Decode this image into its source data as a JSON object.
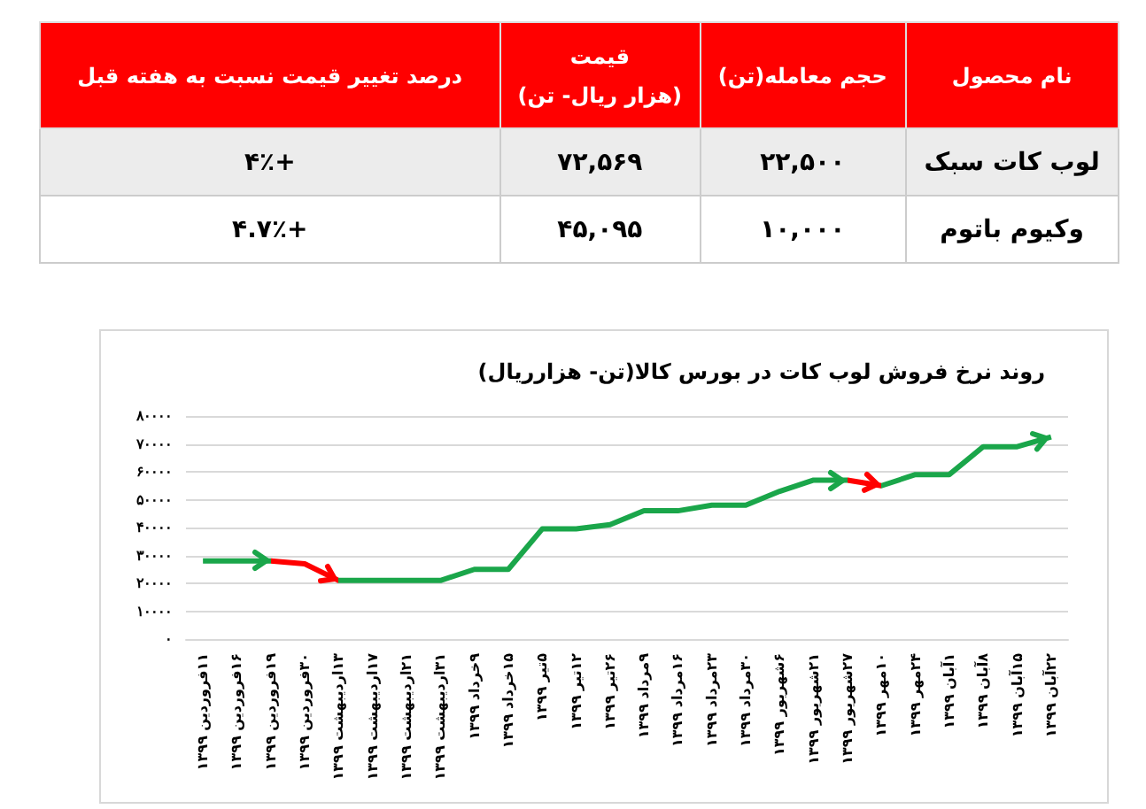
{
  "chart_data": [
    {
      "type": "other",
      "categories": [
        "نام محصول",
        "حجم معامله(تن)",
        "قیمت\n(هزار ریال- تن)",
        "درصد تغییر قیمت نسبت به هفته قبل"
      ],
      "cell_labels": [
        [
          "لوب کات سبک",
          "۲۲,۵۰۰",
          "۷۲,۵۶۹",
          "+۴٪"
        ],
        [
          "وکیوم باتوم",
          "۱۰,۰۰۰",
          "۴۵,۰۹۵",
          "+۴.۷٪"
        ]
      ]
    },
    {
      "type": "line",
      "title": "روند نرخ فروش لوب کات در بورس کالا(تن- هزارریال)",
      "categories": [
        "۱۱فروردین ۱۳۹۹",
        "۱۶فروردین ۱۳۹۹",
        "۱۹فروردین ۱۳۹۹",
        "۳۰فروردین ۱۳۹۹",
        "۱۳اردیبهشت ۱۳۹۹",
        "۱۷اردیبهشت ۱۳۹۹",
        "۲۱اردیبهشت ۱۳۹۹",
        "۳۱اردیبهشت ۱۳۹۹",
        "۹خرداد ۱۳۹۹",
        "۱۵خرداد ۱۳۹۹",
        "۵تیر ۱۳۹۹",
        "۱۲تیر ۱۳۹۹",
        "۲۶تیر ۱۳۹۹",
        "۹مرداد ۱۳۹۹",
        "۱۶مرداد ۱۳۹۹",
        "۲۳مرداد ۱۳۹۹",
        "۳۰مرداد ۱۳۹۹",
        "۶شهریور ۱۳۹۹",
        "۲۱شهریور ۱۳۹۹",
        "۲۷شهریور ۱۳۹۹",
        "۱۰مهر ۱۳۹۹",
        "۲۴مهر ۱۳۹۹",
        "۱آبان ۱۳۹۹",
        "۸آبان ۱۳۹۹",
        "۱۵آبان ۱۳۹۹",
        "۲۲آبان ۱۳۹۹"
      ],
      "values": [
        28000,
        28000,
        28000,
        27000,
        21000,
        21000,
        21000,
        21000,
        25000,
        25000,
        39500,
        39500,
        41000,
        46000,
        46000,
        48000,
        48000,
        53000,
        57000,
        57000,
        55000,
        59000,
        59000,
        69000,
        69000,
        72500
      ],
      "colors": [
        "#1aa64a",
        "#1aa64a",
        "#1aa64a",
        "#ff0000",
        "#ff0000",
        "#1aa64a",
        "#1aa64a",
        "#1aa64a",
        "#1aa64a",
        "#1aa64a",
        "#1aa64a",
        "#1aa64a",
        "#1aa64a",
        "#1aa64a",
        "#1aa64a",
        "#1aa64a",
        "#1aa64a",
        "#1aa64a",
        "#1aa64a",
        "#1aa64a",
        "#ff0000",
        "#1aa64a",
        "#1aa64a",
        "#1aa64a",
        "#1aa64a",
        "#1aa64a"
      ],
      "ylim": [
        0,
        80000
      ],
      "yticks": [
        {
          "value": 0,
          "label": "۰"
        },
        {
          "value": 10000,
          "label": "۱۰۰۰۰"
        },
        {
          "value": 20000,
          "label": "۲۰۰۰۰"
        },
        {
          "value": 30000,
          "label": "۳۰۰۰۰"
        },
        {
          "value": 40000,
          "label": "۴۰۰۰۰"
        },
        {
          "value": 50000,
          "label": "۵۰۰۰۰"
        },
        {
          "value": 60000,
          "label": "۶۰۰۰۰"
        },
        {
          "value": 70000,
          "label": "۷۰۰۰۰"
        },
        {
          "value": 80000,
          "label": "۸۰۰۰۰"
        }
      ],
      "grid": "y"
    }
  ]
}
